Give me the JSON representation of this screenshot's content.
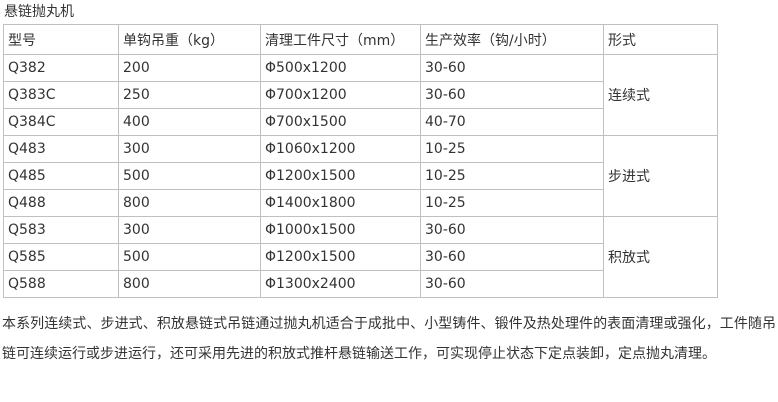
{
  "page": {
    "title": "悬链抛丸机",
    "description": "本系列连续式、步进式、积放悬链式吊链通过抛丸机适合于成批中、小型铸件、锻件及热处理件的表面清理或强化，工件随吊链可连续运行或步进运行，还可采用先进的积放式推杆悬链输送工作，可实现停止状态下定点装卸，定点抛丸清理。"
  },
  "table": {
    "headers": [
      "型号",
      "单钩吊重（kg）",
      "清理工件尺寸（mm）",
      "生产效率（钩/小时）",
      "形式"
    ],
    "rows": [
      {
        "model": "Q382",
        "load": "200",
        "size": "Φ500x1200",
        "efficiency": "30-60",
        "type": "连续式",
        "type_rowspan": 3
      },
      {
        "model": "Q383C",
        "load": "250",
        "size": "Φ700x1200",
        "efficiency": "30-60"
      },
      {
        "model": "Q384C",
        "load": "400",
        "size": "Φ700x1500",
        "efficiency": "40-70"
      },
      {
        "model": "Q483",
        "load": "300",
        "size": "Φ1060x1200",
        "efficiency": "10-25",
        "type": "步进式",
        "type_rowspan": 3
      },
      {
        "model": "Q485",
        "load": "500",
        "size": "Φ1200x1500",
        "efficiency": "10-25"
      },
      {
        "model": "Q488",
        "load": "800",
        "size": "Φ1400x1800",
        "efficiency": "10-25"
      },
      {
        "model": "Q583",
        "load": "300",
        "size": "Φ1000x1500",
        "efficiency": "30-60",
        "type": "积放式",
        "type_rowspan": 3
      },
      {
        "model": "Q585",
        "load": "500",
        "size": "Φ1200x1500",
        "efficiency": "30-60"
      },
      {
        "model": "Q588",
        "load": "800",
        "size": "Φ1300x2400",
        "efficiency": "30-60"
      }
    ]
  },
  "colors": {
    "text": "#333333",
    "border": "#c0c0c0",
    "background": "#ffffff"
  }
}
